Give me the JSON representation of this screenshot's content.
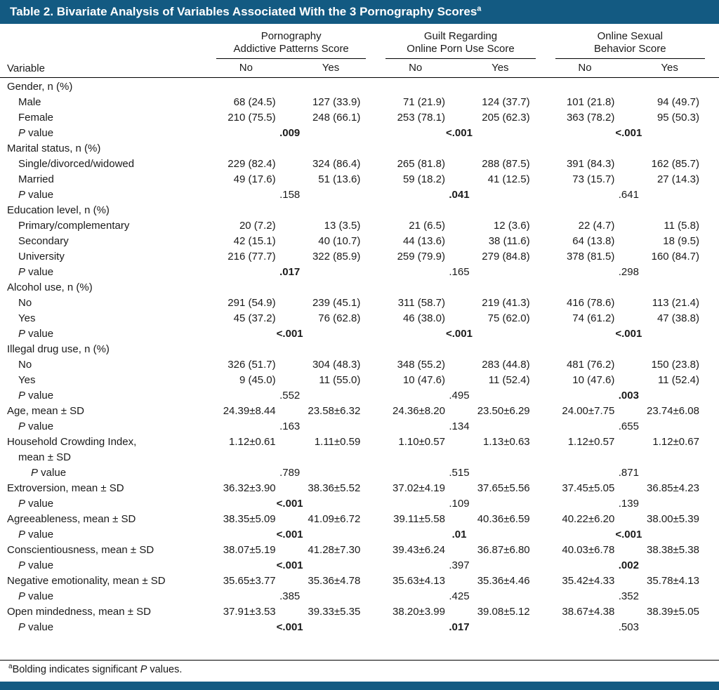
{
  "colors": {
    "accent": "#135a82",
    "text": "#1a1a1a"
  },
  "title": {
    "text": "Table 2. Bivariate Analysis of Variables Associated With the 3 Pornography Scores",
    "superscript": "a"
  },
  "header": {
    "variable_label": "Variable",
    "groups": [
      {
        "line1": "Pornography",
        "line2": "Addictive Patterns Score",
        "no": "No",
        "yes": "Yes"
      },
      {
        "line1": "Guilt Regarding",
        "line2": "Online Porn Use Score",
        "no": "No",
        "yes": "Yes"
      },
      {
        "line1": "Online Sexual",
        "line2": "Behavior Score",
        "no": "No",
        "yes": "Yes"
      }
    ]
  },
  "pvalue_label": {
    "italic": "P",
    "rest": " value"
  },
  "rows": [
    {
      "type": "section",
      "label": "Gender, n (%)"
    },
    {
      "type": "data",
      "indent": 1,
      "label": "Male",
      "values": [
        "68 (24.5)",
        "127 (33.9)",
        "71 (21.9)",
        "124 (37.7)",
        "101 (21.8)",
        "94 (49.7)"
      ]
    },
    {
      "type": "data",
      "indent": 1,
      "label": "Female",
      "values": [
        "210 (75.5)",
        "248 (66.1)",
        "253 (78.1)",
        "205 (62.3)",
        "363 (78.2)",
        "95 (50.3)"
      ]
    },
    {
      "type": "pvalue",
      "indent": 1,
      "values": [
        {
          "text": ".009",
          "bold": true
        },
        {
          "text": "<.001",
          "bold": true
        },
        {
          "text": "<.001",
          "bold": true
        }
      ]
    },
    {
      "type": "section",
      "label": "Marital status, n (%)"
    },
    {
      "type": "data",
      "indent": 1,
      "label": "Single/divorced/widowed",
      "values": [
        "229 (82.4)",
        "324 (86.4)",
        "265 (81.8)",
        "288 (87.5)",
        "391 (84.3)",
        "162 (85.7)"
      ]
    },
    {
      "type": "data",
      "indent": 1,
      "label": "Married",
      "values": [
        "49 (17.6)",
        "51 (13.6)",
        "59 (18.2)",
        "41 (12.5)",
        "73 (15.7)",
        "27 (14.3)"
      ]
    },
    {
      "type": "pvalue",
      "indent": 1,
      "values": [
        {
          "text": ".158",
          "bold": false
        },
        {
          "text": ".041",
          "bold": true
        },
        {
          "text": ".641",
          "bold": false
        }
      ]
    },
    {
      "type": "section",
      "label": "Education level, n (%)"
    },
    {
      "type": "data",
      "indent": 1,
      "label": "Primary/complementary",
      "values": [
        "20 (7.2)",
        "13 (3.5)",
        "21 (6.5)",
        "12 (3.6)",
        "22 (4.7)",
        "11 (5.8)"
      ]
    },
    {
      "type": "data",
      "indent": 1,
      "label": "Secondary",
      "values": [
        "42 (15.1)",
        "40 (10.7)",
        "44 (13.6)",
        "38 (11.6)",
        "64 (13.8)",
        "18 (9.5)"
      ]
    },
    {
      "type": "data",
      "indent": 1,
      "label": "University",
      "values": [
        "216 (77.7)",
        "322 (85.9)",
        "259 (79.9)",
        "279 (84.8)",
        "378 (81.5)",
        "160 (84.7)"
      ]
    },
    {
      "type": "pvalue",
      "indent": 1,
      "values": [
        {
          "text": ".017",
          "bold": true
        },
        {
          "text": ".165",
          "bold": false
        },
        {
          "text": ".298",
          "bold": false
        }
      ]
    },
    {
      "type": "section",
      "label": "Alcohol use, n (%)"
    },
    {
      "type": "data",
      "indent": 1,
      "label": "No",
      "values": [
        "291 (54.9)",
        "239 (45.1)",
        "311 (58.7)",
        "219 (41.3)",
        "416 (78.6)",
        "113 (21.4)"
      ]
    },
    {
      "type": "data",
      "indent": 1,
      "label": "Yes",
      "values": [
        "45 (37.2)",
        "76 (62.8)",
        "46 (38.0)",
        "75 (62.0)",
        "74 (61.2)",
        "47 (38.8)"
      ]
    },
    {
      "type": "pvalue",
      "indent": 1,
      "values": [
        {
          "text": "<.001",
          "bold": true
        },
        {
          "text": "<.001",
          "bold": true
        },
        {
          "text": "<.001",
          "bold": true
        }
      ]
    },
    {
      "type": "section",
      "label": "Illegal drug use, n (%)"
    },
    {
      "type": "data",
      "indent": 1,
      "label": "No",
      "values": [
        "326 (51.7)",
        "304 (48.3)",
        "348 (55.2)",
        "283 (44.8)",
        "481 (76.2)",
        "150 (23.8)"
      ]
    },
    {
      "type": "data",
      "indent": 1,
      "label": "Yes",
      "values": [
        "9 (45.0)",
        "11 (55.0)",
        "10 (47.6)",
        "11 (52.4)",
        "10 (47.6)",
        "11 (52.4)"
      ]
    },
    {
      "type": "pvalue",
      "indent": 1,
      "values": [
        {
          "text": ".552",
          "bold": false
        },
        {
          "text": ".495",
          "bold": false
        },
        {
          "text": ".003",
          "bold": true
        }
      ]
    },
    {
      "type": "data",
      "indent": 0,
      "label": "Age, mean ± SD",
      "values": [
        "24.39±8.44",
        "23.58±6.32",
        "24.36±8.20",
        "23.50±6.29",
        "24.00±7.75",
        "23.74±6.08"
      ]
    },
    {
      "type": "pvalue",
      "indent": 1,
      "values": [
        {
          "text": ".163",
          "bold": false
        },
        {
          "text": ".134",
          "bold": false
        },
        {
          "text": ".655",
          "bold": false
        }
      ]
    },
    {
      "type": "data",
      "indent": 0,
      "label": "Household Crowding Index,",
      "label2": "mean ± SD",
      "values": [
        "1.12±0.61",
        "1.11±0.59",
        "1.10±0.57",
        "1.13±0.63",
        "1.12±0.57",
        "1.12±0.67"
      ]
    },
    {
      "type": "pvalue",
      "indent": 2,
      "values": [
        {
          "text": ".789",
          "bold": false
        },
        {
          "text": ".515",
          "bold": false
        },
        {
          "text": ".871",
          "bold": false
        }
      ]
    },
    {
      "type": "data",
      "indent": 0,
      "label": "Extroversion, mean ± SD",
      "values": [
        "36.32±3.90",
        "38.36±5.52",
        "37.02±4.19",
        "37.65±5.56",
        "37.45±5.05",
        "36.85±4.23"
      ]
    },
    {
      "type": "pvalue",
      "indent": 1,
      "values": [
        {
          "text": "<.001",
          "bold": true
        },
        {
          "text": ".109",
          "bold": false
        },
        {
          "text": ".139",
          "bold": false
        }
      ]
    },
    {
      "type": "data",
      "indent": 0,
      "label": "Agreeableness, mean ± SD",
      "values": [
        "38.35±5.09",
        "41.09±6.72",
        "39.11±5.58",
        "40.36±6.59",
        "40.22±6.20",
        "38.00±5.39"
      ]
    },
    {
      "type": "pvalue",
      "indent": 1,
      "values": [
        {
          "text": "<.001",
          "bold": true
        },
        {
          "text": ".01",
          "bold": true
        },
        {
          "text": "<.001",
          "bold": true
        }
      ]
    },
    {
      "type": "data",
      "indent": 0,
      "label": "Conscientiousness, mean ± SD",
      "values": [
        "38.07±5.19",
        "41.28±7.30",
        "39.43±6.24",
        "36.87±6.80",
        "40.03±6.78",
        "38.38±5.38"
      ]
    },
    {
      "type": "pvalue",
      "indent": 1,
      "values": [
        {
          "text": "<.001",
          "bold": true
        },
        {
          "text": ".397",
          "bold": false
        },
        {
          "text": ".002",
          "bold": true
        }
      ]
    },
    {
      "type": "data",
      "indent": 0,
      "label": "Negative emotionality, mean ± SD",
      "values": [
        "35.65±3.77",
        "35.36±4.78",
        "35.63±4.13",
        "35.36±4.46",
        "35.42±4.33",
        "35.78±4.13"
      ]
    },
    {
      "type": "pvalue",
      "indent": 1,
      "values": [
        {
          "text": ".385",
          "bold": false
        },
        {
          "text": ".425",
          "bold": false
        },
        {
          "text": ".352",
          "bold": false
        }
      ]
    },
    {
      "type": "data",
      "indent": 0,
      "label": "Open mindedness, mean ± SD",
      "values": [
        "37.91±3.53",
        "39.33±5.35",
        "38.20±3.99",
        "39.08±5.12",
        "38.67±4.38",
        "38.39±5.05"
      ]
    },
    {
      "type": "pvalue",
      "indent": 1,
      "values": [
        {
          "text": "<.001",
          "bold": true
        },
        {
          "text": ".017",
          "bold": true
        },
        {
          "text": ".503",
          "bold": false
        }
      ]
    }
  ],
  "footnote": {
    "superscript": "a",
    "pre": "Bolding indicates significant ",
    "italic": "P",
    "post": " values."
  }
}
